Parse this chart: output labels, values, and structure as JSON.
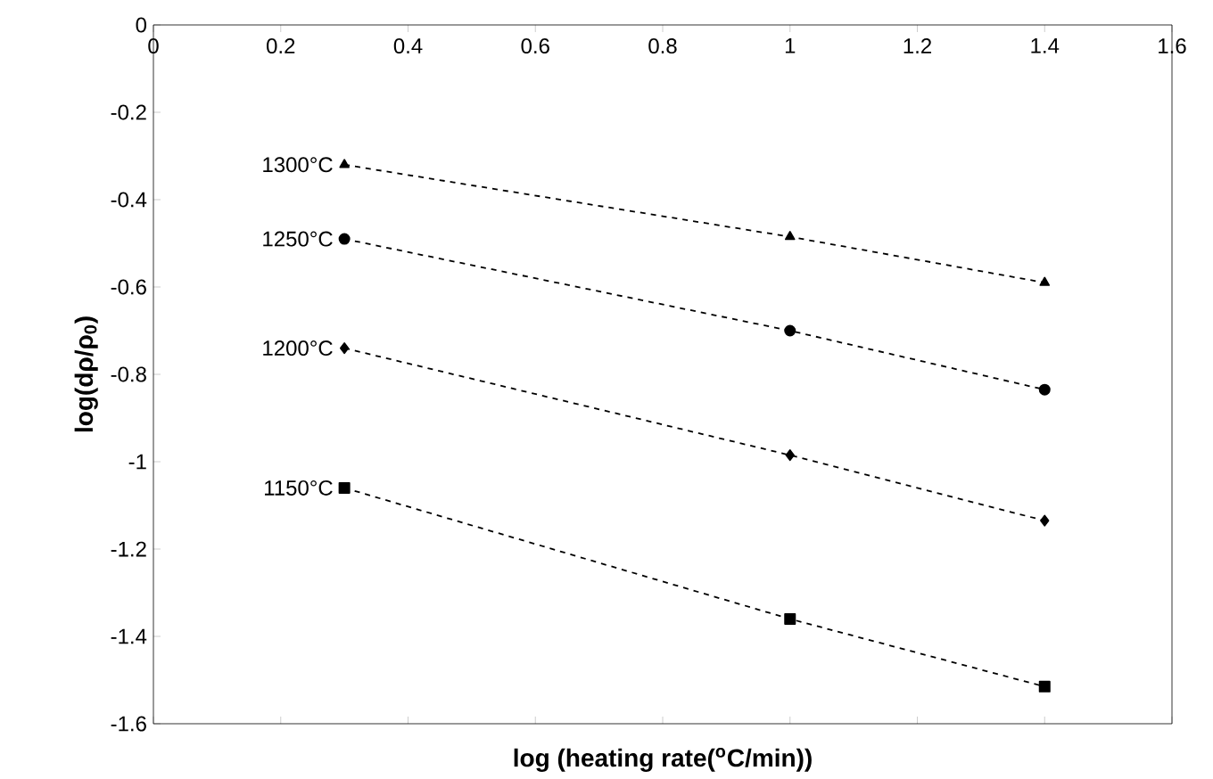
{
  "chart_data": {
    "type": "line",
    "xlabel": "log (heating rate($^{o}$C/min))",
    "ylabel": "log(dρ/ρ$_{0}$)",
    "x": [
      0.3,
      1,
      1.4
    ],
    "series": [
      {
        "name": "1300°C",
        "color": "#000000",
        "marker": "triangle",
        "values": [
          -0.32,
          -0.485,
          -0.59
        ]
      },
      {
        "name": "1250°C",
        "color": "#000000",
        "marker": "circle",
        "values": [
          -0.49,
          -0.7,
          -0.835
        ]
      },
      {
        "name": "1200°C",
        "color": "#000000",
        "marker": "diamond",
        "values": [
          -0.74,
          -0.985,
          -1.135
        ]
      },
      {
        "name": "1150°C",
        "color": "#000000",
        "marker": "square",
        "values": [
          -1.06,
          -1.36,
          -1.515
        ]
      }
    ],
    "xlim": [
      0,
      1.6
    ],
    "ylim": [
      -1.6,
      0
    ],
    "xticks": [
      0,
      0.2,
      0.4,
      0.6,
      0.8,
      1,
      1.2,
      1.4,
      1.6
    ],
    "yticks": [
      0,
      -0.2,
      -0.4,
      -0.6,
      -0.8,
      -1,
      -1.2,
      -1.4,
      -1.6
    ],
    "line_style": "dashed",
    "grid": false
  }
}
